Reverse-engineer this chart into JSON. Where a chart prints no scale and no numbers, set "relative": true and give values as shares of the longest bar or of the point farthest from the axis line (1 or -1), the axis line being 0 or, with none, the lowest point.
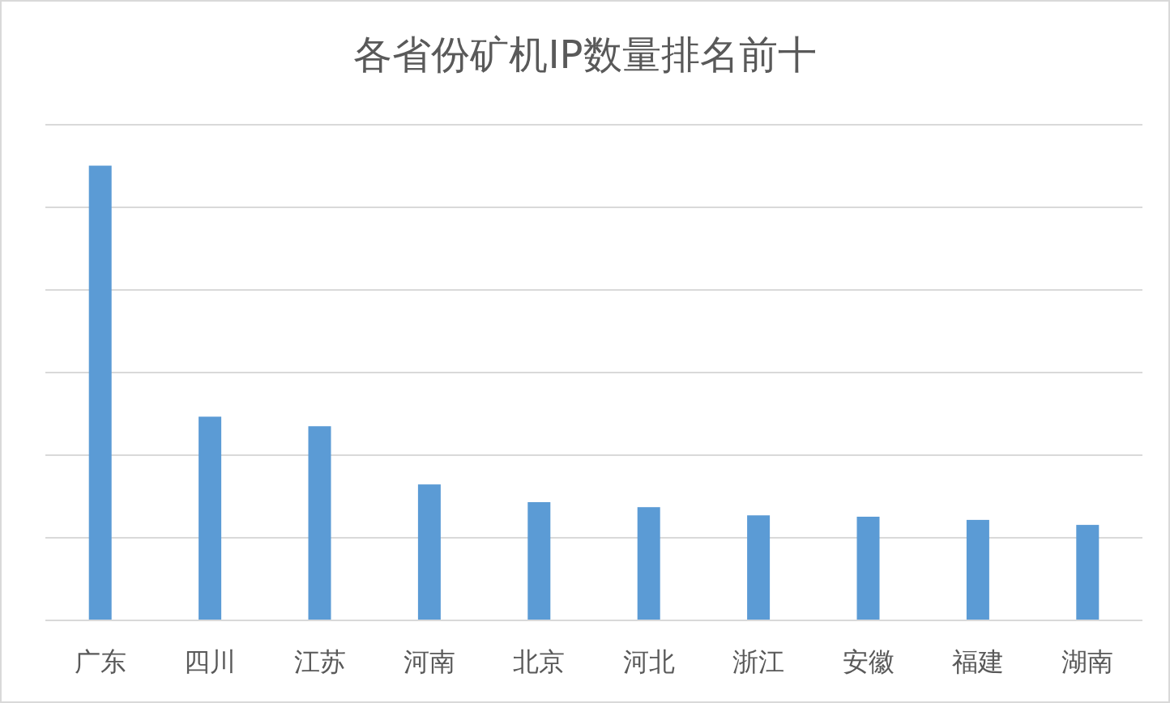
{
  "chart_data": {
    "type": "bar",
    "title": "各省份矿机IP数量排名前十",
    "categories": [
      "广东",
      "四川",
      "江苏",
      "河南",
      "北京",
      "河北",
      "浙江",
      "安徽",
      "福建",
      "湖南"
    ],
    "values": [
      1,
      0.448,
      0.427,
      0.299,
      0.26,
      0.249,
      0.231,
      0.228,
      0.221,
      0.21
    ],
    "color": "#5b9bd5",
    "relative": true,
    "grid": "y"
  }
}
